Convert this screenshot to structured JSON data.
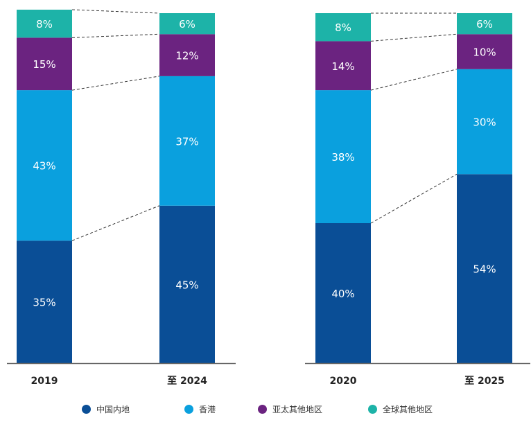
{
  "chart_data": [
    {
      "type": "bar",
      "stacked": true,
      "categories": [
        "2019",
        "至 2024"
      ],
      "ylim": [
        0,
        100
      ],
      "series": [
        {
          "name": "中国内地",
          "values": [
            35,
            45
          ],
          "labels": [
            "35%",
            "45%"
          ]
        },
        {
          "name": "香港",
          "values": [
            43,
            37
          ],
          "labels": [
            "43%",
            "37%"
          ]
        },
        {
          "name": "亚太其他地区",
          "values": [
            15,
            12
          ],
          "labels": [
            "15%",
            "12%"
          ]
        },
        {
          "name": "全球其他地区",
          "values": [
            8,
            6
          ],
          "labels": [
            "8%",
            "6%"
          ]
        }
      ]
    },
    {
      "type": "bar",
      "stacked": true,
      "categories": [
        "2020",
        "至 2025"
      ],
      "ylim": [
        0,
        100
      ],
      "series": [
        {
          "name": "中国内地",
          "values": [
            40,
            54
          ],
          "labels": [
            "40%",
            "54%"
          ]
        },
        {
          "name": "香港",
          "values": [
            38,
            30
          ],
          "labels": [
            "38%",
            "30%"
          ]
        },
        {
          "name": "亚太其他地区",
          "values": [
            14,
            10
          ],
          "labels": [
            "14%",
            "10%"
          ]
        },
        {
          "name": "全球其他地区",
          "values": [
            8,
            6
          ],
          "labels": [
            "8%",
            "6%"
          ]
        }
      ]
    }
  ],
  "legend": {
    "placement": "bottom",
    "items": [
      {
        "label": "中国内地",
        "color": "#0a4e96"
      },
      {
        "label": "香港",
        "color": "#0aa0de"
      },
      {
        "label": "亚太其他地区",
        "color": "#6b2380"
      },
      {
        "label": "全球其他地区",
        "color": "#1db3a8"
      }
    ]
  }
}
